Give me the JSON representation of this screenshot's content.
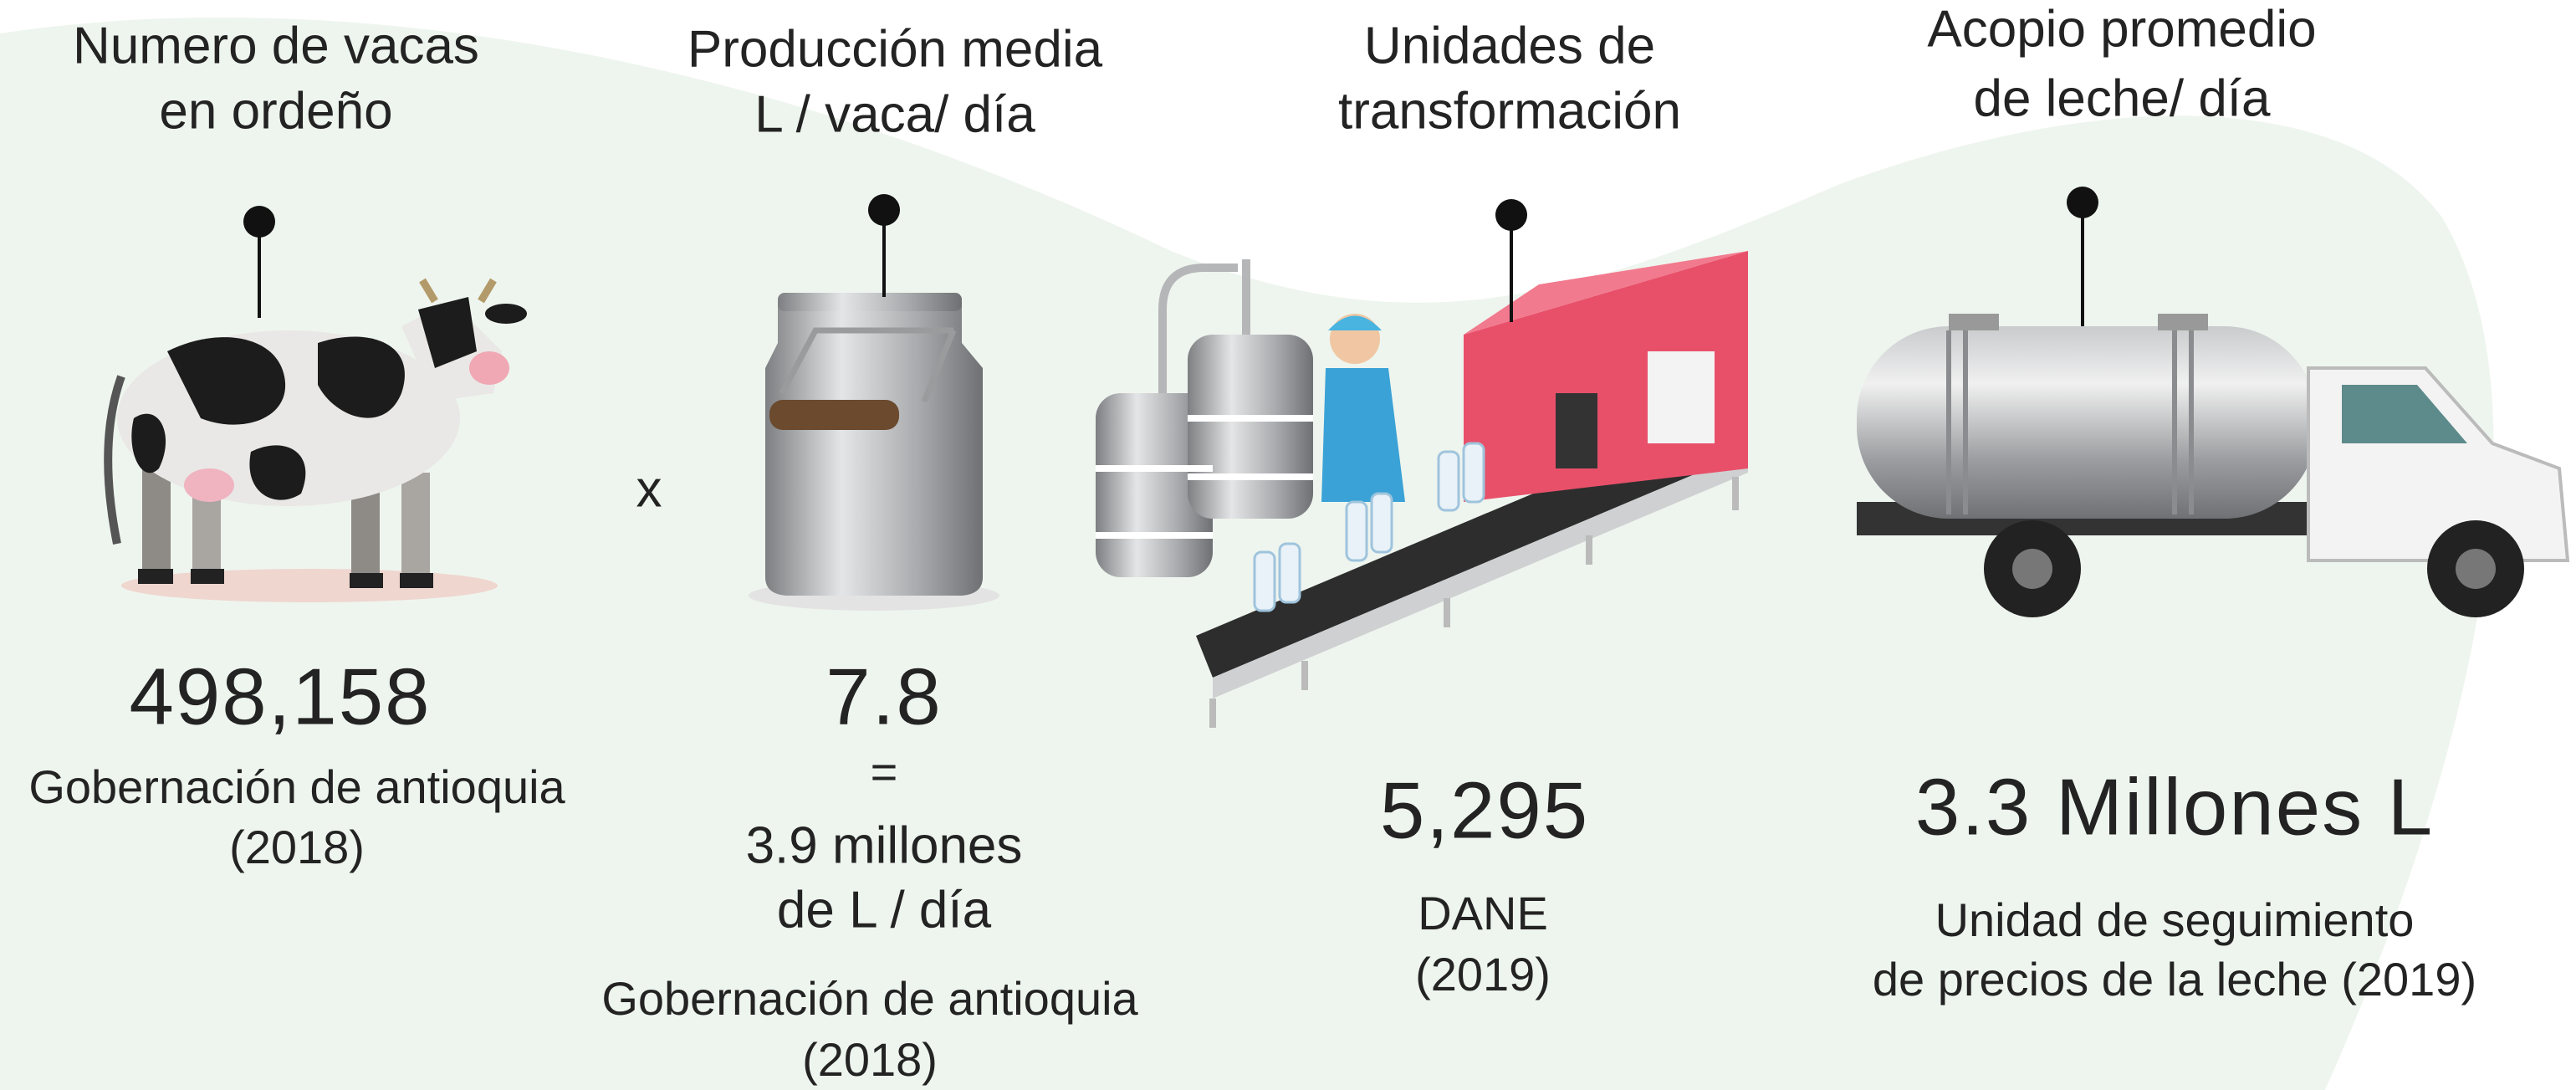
{
  "panels": [
    {
      "title": [
        "Numero de vacas",
        "en ordeño"
      ],
      "value": "498,158",
      "source": [
        "Gobernación de antioquia",
        "(2018)"
      ]
    },
    {
      "title": [
        "Producción media",
        "L / vaca/ día"
      ],
      "value": "7.8",
      "operator": "=",
      "result": [
        "3.9 millones",
        "de L / día"
      ],
      "source": [
        "Gobernación de antioquia",
        "(2018)"
      ]
    },
    {
      "title": [
        "Unidades de",
        "transformación"
      ],
      "value": "5,295",
      "source": [
        "DANE",
        "(2019)"
      ]
    },
    {
      "title": [
        "Acopio promedio",
        "de leche/ día"
      ],
      "value": "3.3 Millones L",
      "source": [
        "Unidad de seguimiento",
        "de precios de la leche (2019)"
      ]
    }
  ],
  "operator": "x"
}
